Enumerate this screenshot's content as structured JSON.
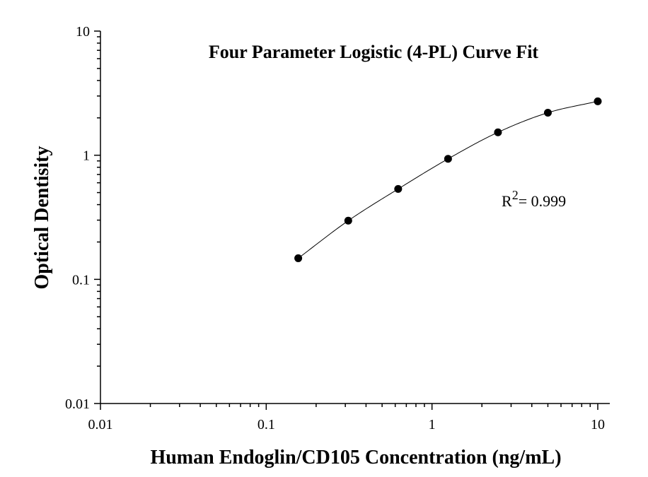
{
  "chart_data": {
    "type": "scatter",
    "title": "Four Parameter Logistic (4-PL) Curve Fit",
    "xlabel": "Human Endoglin/CD105 Concentration (ng/mL)",
    "ylabel": "Optical Dentisity",
    "xscale": "log",
    "yscale": "log",
    "xlim": [
      0.01,
      10
    ],
    "ylim": [
      0.01,
      10
    ],
    "x_ticks": [
      "0.01",
      "0.1",
      "1",
      "10"
    ],
    "y_ticks": [
      "0.01",
      "0.1",
      "1",
      "10"
    ],
    "grid": false,
    "series": [
      {
        "x": [
          0.156,
          0.3125,
          0.625,
          1.25,
          2.5,
          5,
          10
        ],
        "y": [
          0.148,
          0.297,
          0.535,
          0.935,
          1.53,
          2.2,
          2.72
        ]
      }
    ],
    "annotation": {
      "r2_prefix": "R",
      "r2_sup": "2",
      "r2_value": "= 0.999"
    }
  }
}
